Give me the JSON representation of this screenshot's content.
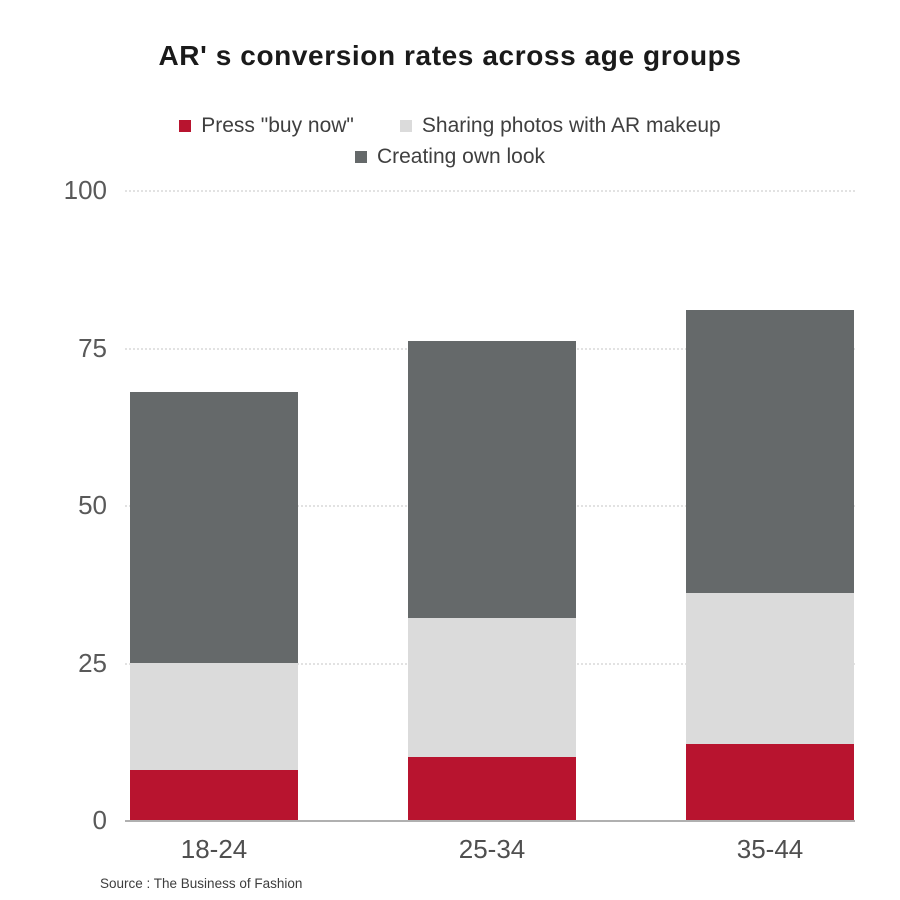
{
  "header": {
    "title": "AR' s conversion rates across age groups"
  },
  "chart_data": {
    "type": "bar",
    "stacked": true,
    "title": "AR' s conversion rates across age groups",
    "categories": [
      "18-24",
      "25-34",
      "35-44"
    ],
    "series": [
      {
        "name": "Press \"buy now\"",
        "color": "#B8142F",
        "values": [
          8,
          10,
          12
        ]
      },
      {
        "name": "Sharing photos with AR makeup",
        "color": "#DBDBDB",
        "values": [
          17,
          22,
          24
        ]
      },
      {
        "name": "Creating own look",
        "color": "#65696A",
        "values": [
          43,
          44,
          45
        ]
      }
    ],
    "yticks": [
      0,
      25,
      50,
      75,
      100
    ],
    "ylim": [
      0,
      100
    ],
    "xlabel": "",
    "ylabel": "",
    "grid": "horizontal-dotted",
    "legend_position": "top",
    "legend_rows": [
      [
        0,
        1
      ],
      [
        2
      ]
    ]
  },
  "footer": {
    "source": "Source : The Business of Fashion"
  }
}
